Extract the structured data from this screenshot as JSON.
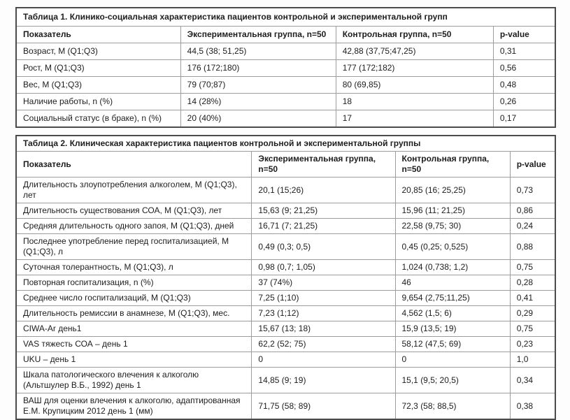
{
  "page": {
    "background_color": "#fdfdfd",
    "table_border_color": "#4b4b4b",
    "cell_border_color": "#9c9c9c",
    "text_color": "#1d1d1d"
  },
  "tables": [
    {
      "title": "Таблица 1. Клинико-социальная характеристика пациентов контрольной и экспериментальной групп",
      "columns": [
        "Показатель",
        "Экспериментальная группа, n=50",
        "Контрольная группа, n=50",
        "p-value"
      ],
      "col_widths": [
        "30.5%",
        "28.8%",
        "29.2%",
        "11.5%"
      ],
      "rows": [
        [
          "Возраст, М (Q1;Q3)",
          "44,5 (38; 51,25)",
          "42,88 (37,75;47,25)",
          "0,31"
        ],
        [
          "Рост, М (Q1;Q3)",
          "176 (172;180)",
          "177 (172;182)",
          "0,56"
        ],
        [
          "Вес, М (Q1;Q3)",
          "79 (70;87)",
          "80 (69,85)",
          "0,48"
        ],
        [
          "Наличие работы, n (%)",
          "14 (28%)",
          "18",
          "0,26"
        ],
        [
          "Социальный статус (в браке), n (%)",
          "20 (40%)",
          "17",
          "0,17"
        ]
      ]
    },
    {
      "title": "Таблица 2. Клиническая характеристика пациентов контрольной и экспериментальной группы",
      "columns": [
        "Показатель",
        "Экспериментальная группа, n=50",
        "Контрольная группа, n=50",
        "p-value"
      ],
      "col_widths": [
        "43.7%",
        "26.6%",
        "21.3%",
        "8.4%"
      ],
      "rows": [
        [
          "Длительность злоупотребления алкоголем, М (Q1;Q3), лет",
          "20,1 (15;26)",
          "20,85 (16; 25,25)",
          "0,73"
        ],
        [
          "Длительность существования СОА, М (Q1;Q3), лет",
          "15,63 (9; 21,25)",
          "15,96 (11; 21,25)",
          "0,86"
        ],
        [
          "Средняя длительность одного запоя, М (Q1;Q3), дней",
          "16,71 (7; 21,25)",
          "22,58 (9,75; 30)",
          "0,24"
        ],
        [
          "Последнее употребление перед госпитализацией, М (Q1;Q3), л",
          "0,49 (0,3; 0,5)",
          "0,45 (0,25; 0,525)",
          "0,88"
        ],
        [
          "Суточная толерантность, М (Q1;Q3), л",
          "0,98 (0,7; 1,05)",
          "1,024 (0,738; 1,2)",
          "0,75"
        ],
        [
          "Повторная госпитализация, n (%)",
          "37 (74%)",
          "46",
          "0,28"
        ],
        [
          "Среднее число госпитализаций, М (Q1;Q3)",
          "7,25 (1;10)",
          "9,654 (2,75;11,25)",
          "0,41"
        ],
        [
          "Длительность ремиссии в анамнезе, М (Q1;Q3), мес.",
          "7,23 (1;12)",
          "4,562 (1,5; 6)",
          "0,29"
        ],
        [
          "CIWA-Ar день1",
          "15,67 (13; 18)",
          "15,9 (13,5; 19)",
          "0,75"
        ],
        [
          "VAS тяжесть СОА – день 1",
          "62,2 (52; 75)",
          "58,12 (47,5; 69)",
          "0,23"
        ],
        [
          "UKU – день 1",
          "0",
          "0",
          "1,0"
        ],
        [
          "Шкала патологического влечения к алкоголю (Альтшулер В.Б., 1992) день 1",
          "14,85 (9; 19)",
          "15,1 (9,5; 20,5)",
          "0,34"
        ],
        [
          "ВАШ для оценки влечения к алкоголю, адаптированная Е.М. Крупицким 2012 день 1 (мм)",
          "71,75 (58; 89)",
          "72,3 (58; 88,5)",
          "0,38"
        ]
      ]
    }
  ]
}
